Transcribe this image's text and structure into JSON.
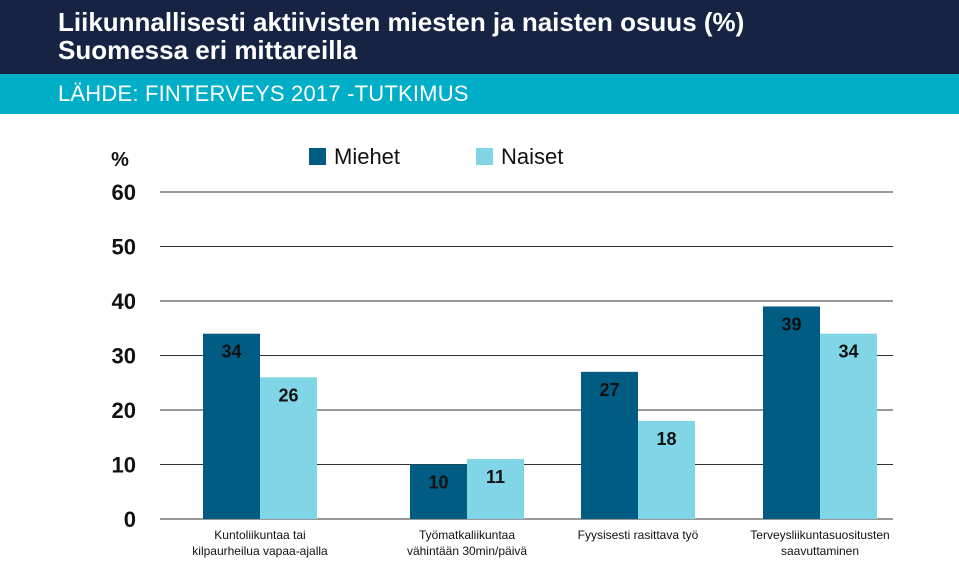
{
  "header": {
    "title_line1": "Liikunnallisesti aktiivisten miesten ja naisten osuus (%)",
    "title_line2": "Suomessa eri mittareilla",
    "source": "LÄHDE:  FINTERVEYS 2017 -TUTKIMUS"
  },
  "colors": {
    "header_bg": "#162342",
    "source_bar": "#00aec8",
    "men": "#005c82",
    "women": "#80d6e6",
    "grid": "#333333"
  },
  "chart_data": {
    "type": "bar",
    "unit_label": "%",
    "categories": [
      [
        "Kuntoliikuntaa tai",
        "kilpaurheilua vapaa-ajalla"
      ],
      [
        "Työmatkaliikuntaa",
        "vähintään 30min/päivä"
      ],
      [
        "Fyysisesti rasittava työ"
      ],
      [
        "Terveysliikuntasuositusten",
        "saavuttaminen"
      ]
    ],
    "series": [
      {
        "name": "Miehet",
        "values": [
          34,
          10,
          27,
          39
        ],
        "labels": [
          "34",
          "10",
          "27",
          "39"
        ]
      },
      {
        "name": "Naiset",
        "values": [
          26,
          11,
          18,
          34
        ],
        "labels": [
          "26",
          "11",
          "18",
          "34"
        ]
      }
    ],
    "ylim": [
      0,
      60
    ],
    "yticks": [
      "0",
      "10",
      "20",
      "30",
      "40",
      "50",
      "60"
    ],
    "grid": true,
    "legend_position": "top-center"
  }
}
